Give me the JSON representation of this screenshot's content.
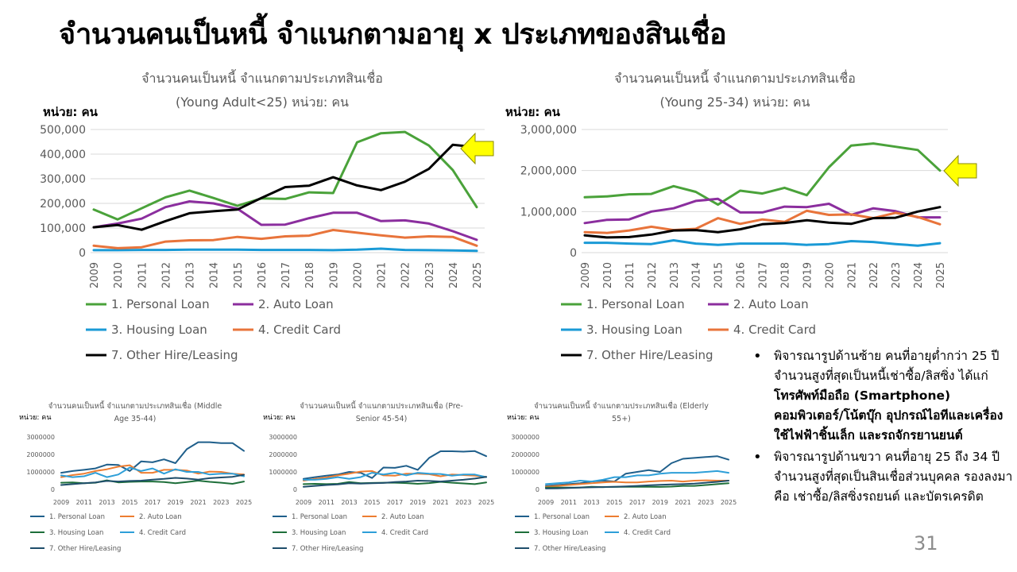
{
  "slide": {
    "title": "จำนวนคนเป็นหนี้ จำแนกตามอายุ x ประเภทของสินเชื่อ",
    "page_number": "31"
  },
  "colors": {
    "personal": "#4aa23a",
    "auto": "#8b2e9e",
    "housing": "#1a9ad6",
    "credit": "#e8743b",
    "other": "#000000",
    "small_personal": "#1f5f8b",
    "small_auto": "#ed7d31",
    "small_housing": "#1e6f3a",
    "small_credit": "#2e9fd8",
    "small_other": "#1f4e6b",
    "arrow": "#ffff00"
  },
  "chart_data": [
    {
      "id": "young",
      "type": "line",
      "title_lines": [
        "จำนวนคนเป็นหนี้ จำแนกตามประเภทสินเชื่อ",
        "(Young Adult<25) หน่วย: คน"
      ],
      "unit_label": "หน่วย: คน",
      "x": [
        "2009",
        "2010",
        "2011",
        "2012",
        "2013",
        "2014",
        "2015",
        "2016",
        "2017",
        "2018",
        "2019",
        "2020",
        "2021",
        "2022",
        "2023",
        "2024",
        "2025"
      ],
      "ylim": [
        0,
        500000
      ],
      "yticks": [
        "0",
        "100,000",
        "200,000",
        "300,000",
        "400,000",
        "500,000"
      ],
      "grid": true,
      "legend_position": "bottom",
      "series": [
        {
          "name": "1. Personal Loan",
          "values": [
            175000,
            135000,
            180000,
            225000,
            252000,
            222000,
            190000,
            220000,
            218000,
            245000,
            242000,
            448000,
            485000,
            490000,
            435000,
            335000,
            185000
          ]
        },
        {
          "name": "2. Auto Loan",
          "values": [
            103000,
            118000,
            138000,
            185000,
            208000,
            200000,
            178000,
            113000,
            114000,
            140000,
            162000,
            162000,
            128000,
            131000,
            118000,
            87000,
            52000
          ]
        },
        {
          "name": "3. Housing Loan",
          "values": [
            10000,
            10000,
            11000,
            11000,
            12000,
            12000,
            12000,
            11000,
            11000,
            11000,
            10000,
            12000,
            16000,
            11000,
            10000,
            9000,
            7000
          ]
        },
        {
          "name": "4. Credit Card",
          "values": [
            28000,
            18000,
            22000,
            45000,
            50000,
            51000,
            64000,
            56000,
            66000,
            69000,
            92000,
            81000,
            70000,
            61000,
            66000,
            64000,
            28000
          ]
        },
        {
          "name": "7. Other Hire/Leasing",
          "values": [
            103000,
            112000,
            93000,
            128000,
            160000,
            168000,
            175000,
            222000,
            266000,
            272000,
            306000,
            273000,
            254000,
            288000,
            340000,
            438000,
            428000
          ]
        }
      ]
    },
    {
      "id": "young25",
      "type": "line",
      "title_lines": [
        "จำนวนคนเป็นหนี้ จำแนกตามประเภทสินเชื่อ",
        "(Young 25-34) หน่วย: คน"
      ],
      "unit_label": "หน่วย: คน",
      "x": [
        "2009",
        "2010",
        "2011",
        "2012",
        "2013",
        "2014",
        "2015",
        "2016",
        "2017",
        "2018",
        "2019",
        "2020",
        "2021",
        "2022",
        "2023",
        "2024",
        "2025"
      ],
      "ylim": [
        0,
        3000000
      ],
      "yticks": [
        "0",
        "1,000,000",
        "2,000,000",
        "3,000,000"
      ],
      "grid": true,
      "legend_position": "bottom",
      "series": [
        {
          "name": "1. Personal Loan",
          "values": [
            1350000,
            1370000,
            1420000,
            1430000,
            1620000,
            1480000,
            1170000,
            1510000,
            1440000,
            1580000,
            1400000,
            2080000,
            2610000,
            2660000,
            2580000,
            2500000,
            2000000
          ]
        },
        {
          "name": "2. Auto Loan",
          "values": [
            720000,
            800000,
            810000,
            1000000,
            1080000,
            1260000,
            1310000,
            980000,
            980000,
            1120000,
            1110000,
            1190000,
            920000,
            1080000,
            1010000,
            860000,
            860000
          ]
        },
        {
          "name": "3. Housing Loan",
          "values": [
            240000,
            240000,
            220000,
            210000,
            300000,
            220000,
            190000,
            220000,
            220000,
            220000,
            190000,
            210000,
            280000,
            260000,
            210000,
            170000,
            230000
          ]
        },
        {
          "name": "4. Credit Card",
          "values": [
            500000,
            480000,
            540000,
            630000,
            550000,
            580000,
            840000,
            700000,
            810000,
            750000,
            1020000,
            920000,
            930000,
            840000,
            970000,
            870000,
            690000
          ]
        },
        {
          "name": "7. Other Hire/Leasing",
          "values": [
            420000,
            370000,
            380000,
            440000,
            540000,
            550000,
            500000,
            570000,
            690000,
            720000,
            790000,
            730000,
            700000,
            840000,
            850000,
            1000000,
            1110000
          ]
        }
      ]
    },
    {
      "id": "middle",
      "type": "line",
      "title_lines": [
        "จำนวนคนเป็นหนี้ จำแนกตามประเภทสินเชื่อ (Middle",
        "Age 35-44)"
      ],
      "unit_label": "หน่วย: คน",
      "x": [
        "2009",
        "2010",
        "2011",
        "2012",
        "2013",
        "2014",
        "2015",
        "2016",
        "2017",
        "2018",
        "2019",
        "2020",
        "2021",
        "2022",
        "2023",
        "2024",
        "2025"
      ],
      "x_tick_labels": [
        "2009",
        "2011",
        "2013",
        "2015",
        "2017",
        "2019",
        "2021",
        "2023",
        "2025"
      ],
      "ylim": [
        0,
        3000000
      ],
      "yticks": [
        "0",
        "1000000",
        "2000000",
        "3000000"
      ],
      "grid": false,
      "legend_position": "bottom",
      "series": [
        {
          "name": "1. Personal Loan",
          "values": [
            950000,
            1050000,
            1120000,
            1200000,
            1420000,
            1400000,
            1050000,
            1600000,
            1550000,
            1720000,
            1500000,
            2300000,
            2700000,
            2700000,
            2650000,
            2650000,
            2200000
          ]
        },
        {
          "name": "2. Auto Loan",
          "values": [
            700000,
            820000,
            900000,
            1050000,
            1150000,
            1300000,
            1380000,
            950000,
            950000,
            1120000,
            1120000,
            1080000,
            900000,
            1020000,
            1000000,
            900000,
            850000
          ]
        },
        {
          "name": "3. Housing Loan",
          "values": [
            380000,
            400000,
            350000,
            380000,
            520000,
            400000,
            430000,
            450000,
            450000,
            420000,
            350000,
            420000,
            500000,
            430000,
            380000,
            320000,
            450000
          ]
        },
        {
          "name": "4. Credit Card",
          "values": [
            800000,
            700000,
            750000,
            950000,
            700000,
            850000,
            1250000,
            1050000,
            1200000,
            900000,
            1150000,
            1000000,
            1000000,
            850000,
            900000,
            900000,
            750000
          ]
        },
        {
          "name": "7. Other Hire/Leasing",
          "values": [
            250000,
            300000,
            350000,
            400000,
            480000,
            450000,
            480000,
            500000,
            560000,
            600000,
            660000,
            620000,
            560000,
            640000,
            680000,
            720000,
            830000
          ]
        }
      ]
    },
    {
      "id": "presenior",
      "type": "line",
      "title_lines": [
        "จำนวนคนเป็นหนี้ จำแนกตามประเภทสินเชื่อ (Pre-",
        "Senior 45-54)"
      ],
      "unit_label": "หน่วย: คน",
      "x": [
        "2009",
        "2010",
        "2011",
        "2012",
        "2013",
        "2014",
        "2015",
        "2016",
        "2017",
        "2018",
        "2019",
        "2020",
        "2021",
        "2022",
        "2023",
        "2024",
        "2025"
      ],
      "x_tick_labels": [
        "2009",
        "2011",
        "2013",
        "2015",
        "2017",
        "2019",
        "2021",
        "2023",
        "2025"
      ],
      "ylim": [
        0,
        3000000
      ],
      "yticks": [
        "0",
        "1000000",
        "2000000",
        "3000000"
      ],
      "grid": false,
      "legend_position": "bottom",
      "series": [
        {
          "name": "1. Personal Loan",
          "values": [
            600000,
            700000,
            780000,
            850000,
            1000000,
            950000,
            650000,
            1250000,
            1230000,
            1350000,
            1120000,
            1800000,
            2180000,
            2180000,
            2160000,
            2190000,
            1900000
          ]
        },
        {
          "name": "2. Auto Loan",
          "values": [
            500000,
            600000,
            680000,
            800000,
            900000,
            1020000,
            1050000,
            800000,
            780000,
            900000,
            900000,
            870000,
            750000,
            850000,
            820000,
            780000,
            720000
          ]
        },
        {
          "name": "3. Housing Loan",
          "values": [
            300000,
            320000,
            300000,
            320000,
            420000,
            350000,
            370000,
            380000,
            380000,
            360000,
            320000,
            360000,
            430000,
            380000,
            340000,
            300000,
            400000
          ]
        },
        {
          "name": "4. Credit Card",
          "values": [
            550000,
            550000,
            600000,
            700000,
            600000,
            700000,
            950000,
            850000,
            950000,
            800000,
            950000,
            900000,
            880000,
            780000,
            850000,
            850000,
            700000
          ]
        },
        {
          "name": "7. Other Hire/Leasing",
          "values": [
            150000,
            200000,
            250000,
            280000,
            350000,
            330000,
            350000,
            370000,
            420000,
            450000,
            500000,
            480000,
            450000,
            500000,
            550000,
            620000,
            720000
          ]
        }
      ]
    },
    {
      "id": "elderly",
      "type": "line",
      "title_lines": [
        "จำนวนคนเป็นหนี้ จำแนกตามประเภทสินเชื่อ (Elderly",
        "55+)"
      ],
      "unit_label": "หน่วย: คน",
      "x": [
        "2009",
        "2010",
        "2011",
        "2012",
        "2013",
        "2014",
        "2015",
        "2016",
        "2017",
        "2018",
        "2019",
        "2020",
        "2021",
        "2022",
        "2023",
        "2024",
        "2025"
      ],
      "x_tick_labels": [
        "2009",
        "2011",
        "2013",
        "2015",
        "2017",
        "2019",
        "2021",
        "2023",
        "2025"
      ],
      "ylim": [
        0,
        3000000
      ],
      "yticks": [
        "0",
        "1000000",
        "2000000",
        "3000000"
      ],
      "grid": false,
      "legend_position": "bottom",
      "series": [
        {
          "name": "1. Personal Loan",
          "values": [
            200000,
            250000,
            300000,
            350000,
            450000,
            500000,
            450000,
            900000,
            1000000,
            1100000,
            1000000,
            1500000,
            1750000,
            1800000,
            1850000,
            1900000,
            1700000
          ]
        },
        {
          "name": "2. Auto Loan",
          "values": [
            150000,
            200000,
            250000,
            300000,
            350000,
            400000,
            430000,
            400000,
            400000,
            450000,
            480000,
            500000,
            450000,
            500000,
            520000,
            500000,
            500000
          ]
        },
        {
          "name": "3. Housing Loan",
          "values": [
            100000,
            110000,
            100000,
            110000,
            150000,
            130000,
            140000,
            150000,
            150000,
            150000,
            140000,
            160000,
            200000,
            200000,
            250000,
            300000,
            350000
          ]
        },
        {
          "name": "4. Credit Card",
          "values": [
            300000,
            350000,
            400000,
            500000,
            450000,
            550000,
            700000,
            700000,
            800000,
            800000,
            900000,
            950000,
            950000,
            950000,
            1000000,
            1050000,
            950000
          ]
        },
        {
          "name": "7. Other Hire/Leasing",
          "values": [
            50000,
            60000,
            80000,
            100000,
            120000,
            130000,
            150000,
            170000,
            200000,
            230000,
            260000,
            280000,
            300000,
            330000,
            380000,
            430000,
            500000
          ]
        }
      ]
    }
  ],
  "bullets": [
    {
      "text": "พิจารณารูปด้านซ้าย คนที่อายุต่ำกว่า 25 ปี จำนวนสูงที่สุดเป็นหนี้เช่าซื้อ/ลิสซิ่ง ได้แก่ ",
      "bold": "โทรศัพท์มือถือ (Smartphone) คอมพิวเตอร์/โน้ตบุ๊ก อุปกรณ์ไอทีและเครื่องใช้ไฟฟ้าชิ้นเล็ก และรถจักรยานยนต์"
    },
    {
      "text": "พิจารณารูปด้านขวา คนที่อายุ 25 ถึง 34 ปี จำนวนสูงที่สุดเป็นสินเชื่อส่วนบุคคล รองลงมาคือ เช่าซื้อ/ลิสซิ่งรถยนต์ และบัตรเครดิต",
      "bold": ""
    }
  ]
}
